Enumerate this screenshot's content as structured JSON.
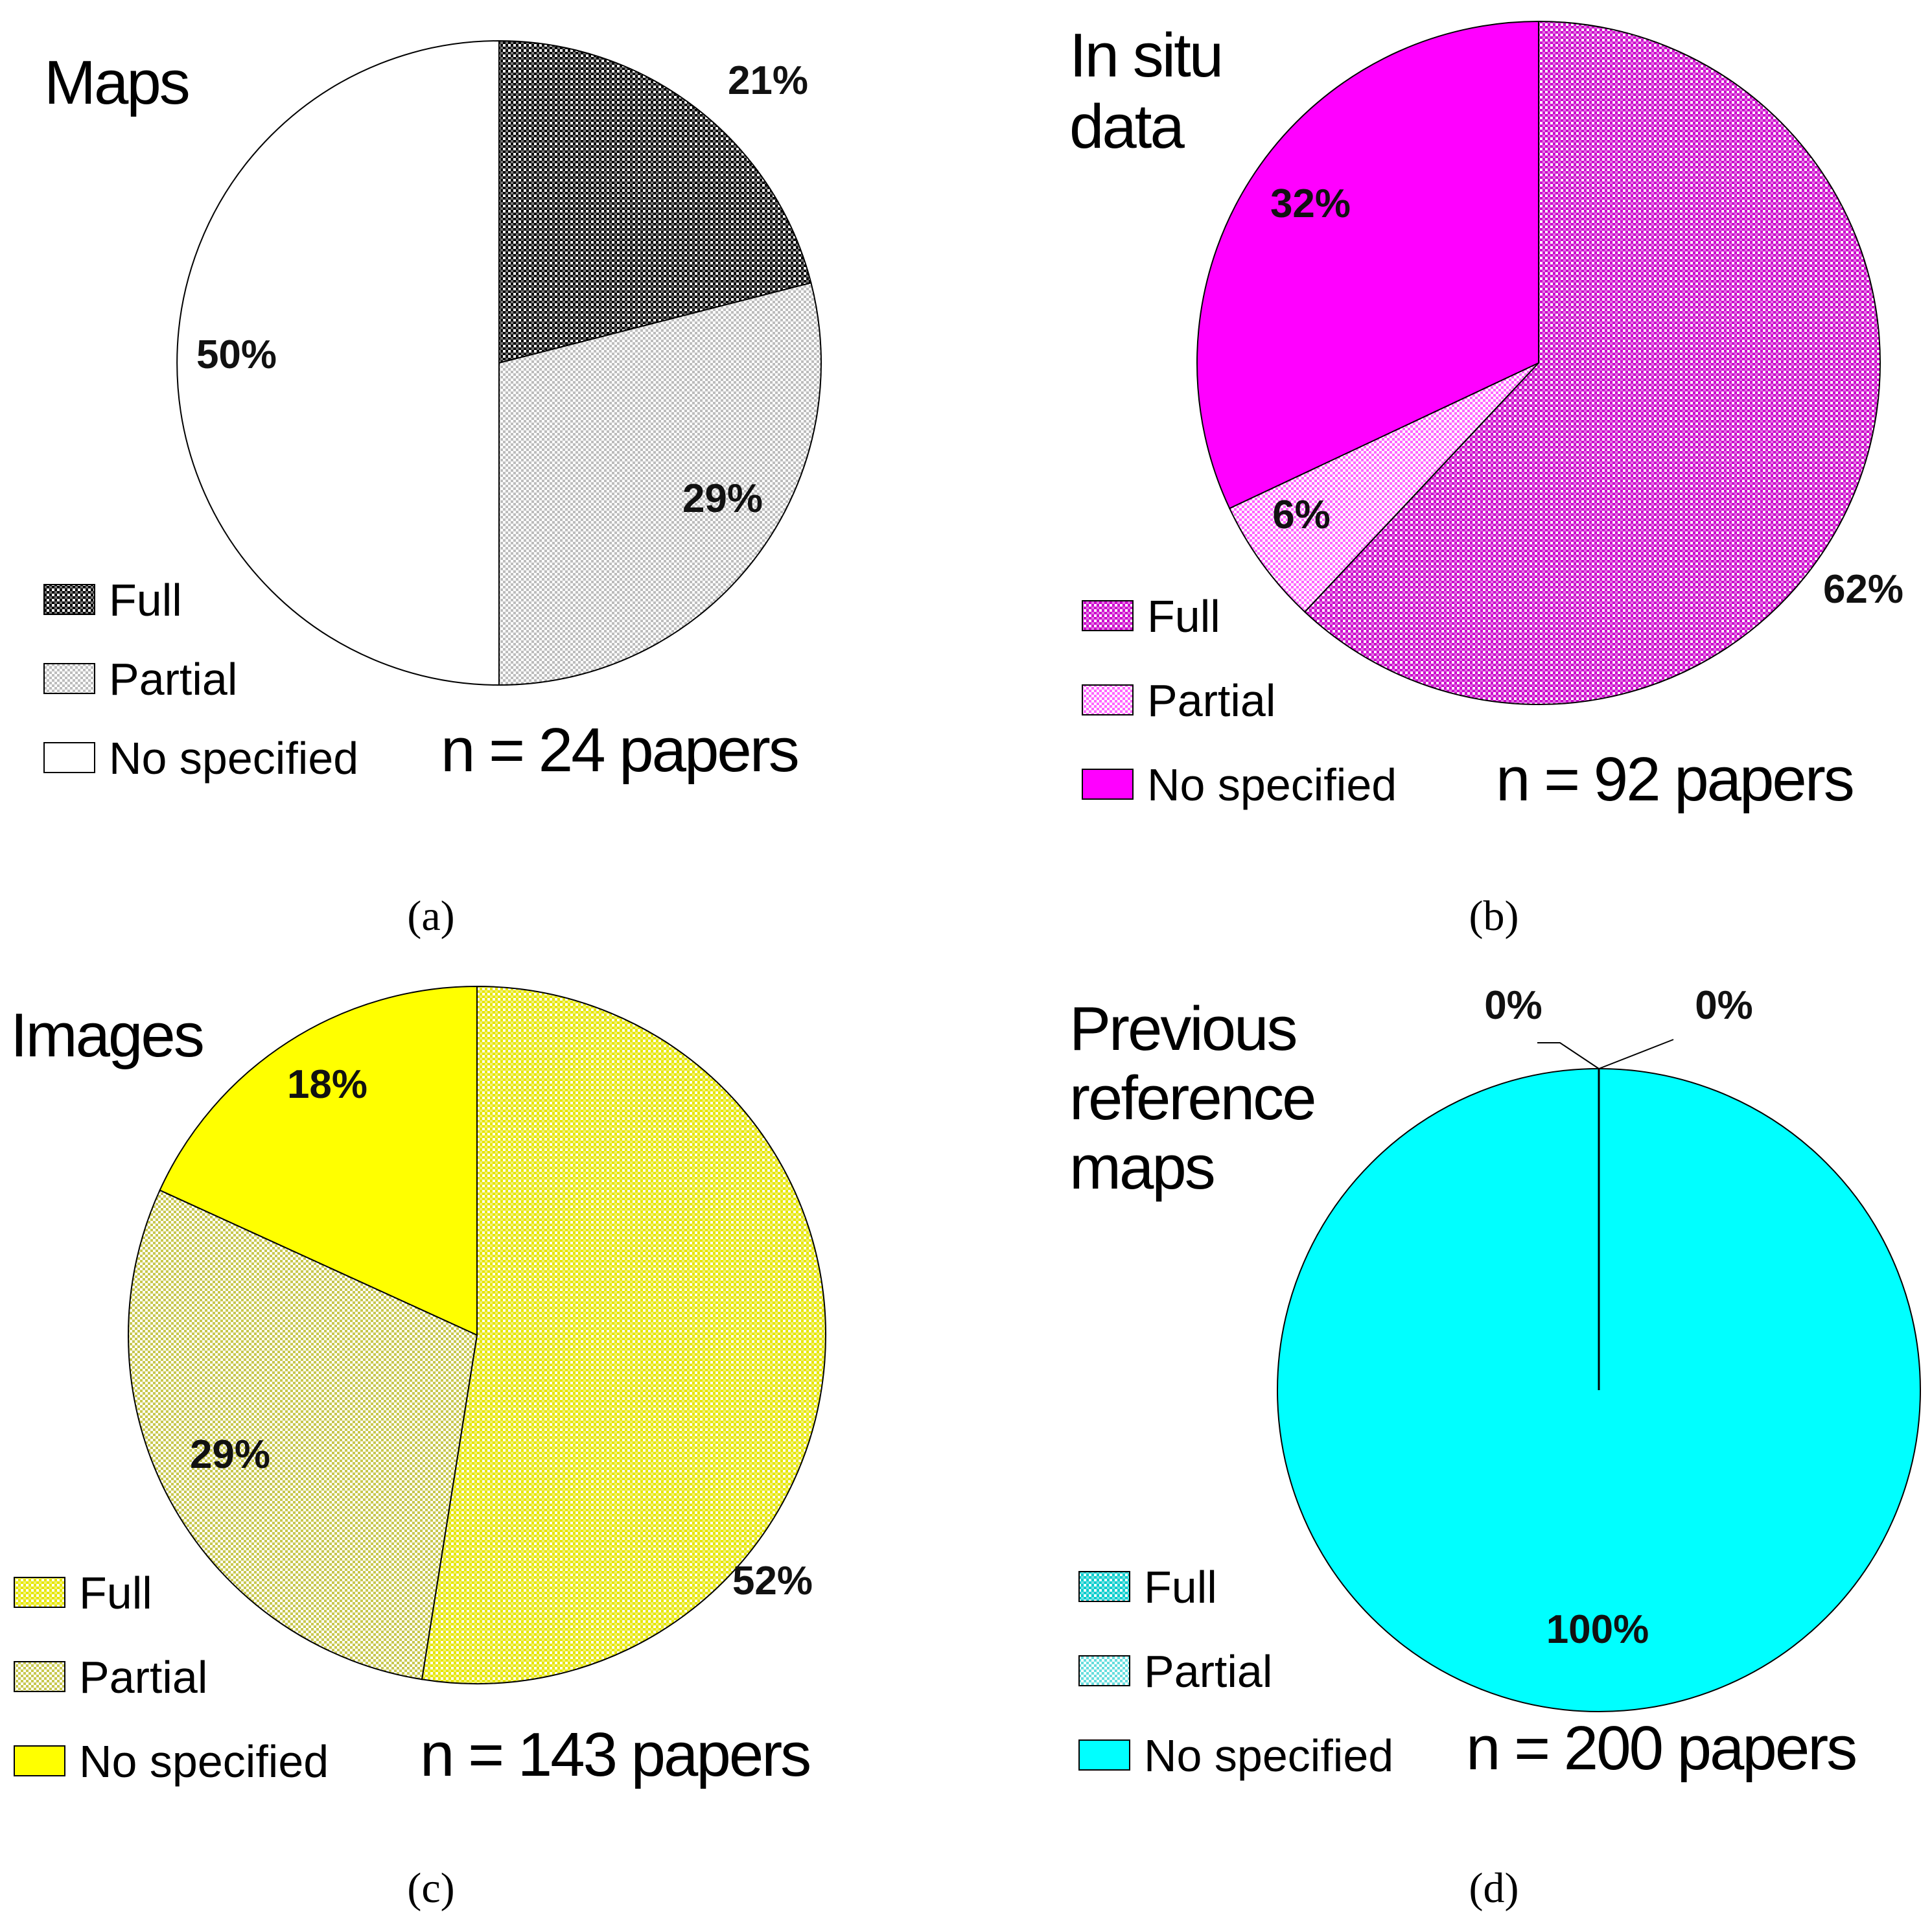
{
  "chart_data": [
    {
      "type": "pie",
      "panel": "(a)",
      "title": "Maps",
      "categories": [
        "Full",
        "Partial",
        "No specified"
      ],
      "values": [
        21,
        29,
        50
      ],
      "value_labels": [
        "21%",
        "29%",
        "50%"
      ],
      "colors": [
        "#000000",
        "#bdbdbd",
        "#ffffff"
      ],
      "patterns": [
        "checker-dense",
        "checker-light",
        "solid"
      ],
      "n_label": "n = 24 papers"
    },
    {
      "type": "pie",
      "panel": "(b)",
      "title": "In situ data",
      "title_lines": [
        "In situ",
        "data"
      ],
      "categories": [
        "Full",
        "Partial",
        "No specified"
      ],
      "values": [
        62,
        6,
        32
      ],
      "value_labels": [
        "62%",
        "6%",
        "32%"
      ],
      "colors": [
        "#cc00cc",
        "#ff66ff",
        "#ff00ff"
      ],
      "patterns": [
        "checker-dense",
        "checker-light",
        "solid"
      ],
      "n_label": "n = 92 papers"
    },
    {
      "type": "pie",
      "panel": "(c)",
      "title": "Images",
      "categories": [
        "Full",
        "Partial",
        "No specified"
      ],
      "values": [
        52,
        29,
        18
      ],
      "value_labels": [
        "52%",
        "29%",
        "18%"
      ],
      "colors": [
        "#e6e600",
        "#c8c850",
        "#ffff00"
      ],
      "patterns": [
        "checker-dense",
        "checker-light",
        "solid"
      ],
      "n_label": "n = 143 papers"
    },
    {
      "type": "pie",
      "panel": "(d)",
      "title": "Previous reference maps",
      "title_lines": [
        "Previous",
        "reference",
        "maps"
      ],
      "categories": [
        "Full",
        "Partial",
        "No specified"
      ],
      "values": [
        0,
        0,
        100
      ],
      "value_labels": [
        "0%",
        "0%",
        "100%"
      ],
      "colors": [
        "#00cccc",
        "#66dddd",
        "#00ffff"
      ],
      "patterns": [
        "checker-dense",
        "checker-light",
        "solid"
      ],
      "n_label": "n = 200 papers"
    }
  ]
}
